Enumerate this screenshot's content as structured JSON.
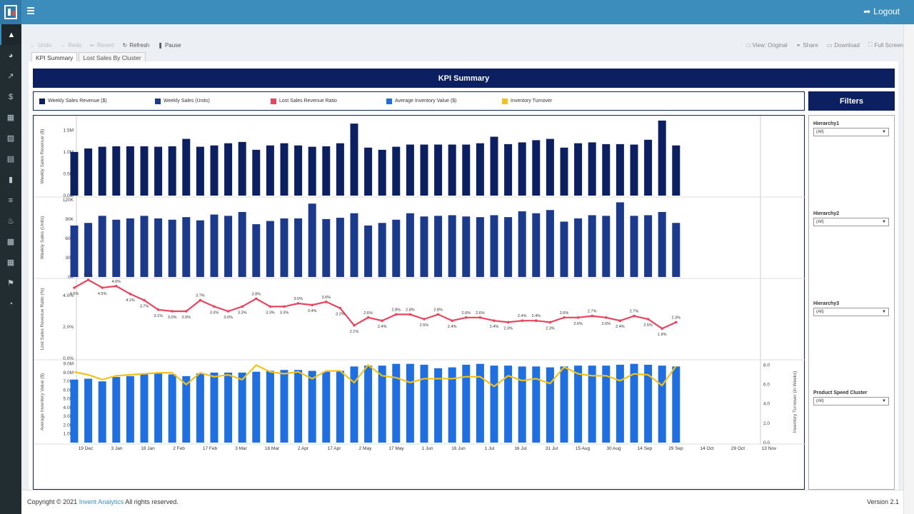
{
  "header": {
    "logout_label": "Logout"
  },
  "sidebar": {
    "items": [
      "chart-area-icon",
      "dashboard-icon",
      "line-chart-icon",
      "dollar-icon",
      "table-icon",
      "truck-icon",
      "database-icon",
      "book-icon",
      "sliders-icon",
      "bell-icon",
      "archive-icon",
      "calendar-icon",
      "flag-icon",
      "pie-chart-icon"
    ]
  },
  "toolbar": {
    "undo": "Undo",
    "redo": "Redo",
    "revert": "Revert",
    "refresh": "Refresh",
    "pause": "Pause",
    "view": "View: Original",
    "share": "Share",
    "download": "Download",
    "fullscreen": "Full Screen"
  },
  "tabs": [
    "KPI Summary",
    "Lost Sales By Cluster"
  ],
  "dashboard": {
    "title": "KPI Summary",
    "legend": [
      {
        "label": "Weekly Sales Revenue ($)",
        "color": "#0c2061"
      },
      {
        "label": "Weekly Sales (Units)",
        "color": "#1c3a8c"
      },
      {
        "label": "Lost Sales Revenue Ratio",
        "color": "#e8455f"
      },
      {
        "label": "Average Inventory Value ($)",
        "color": "#1f6fe0"
      },
      {
        "label": "Inventory Turnover",
        "color": "#f3c218"
      }
    ]
  },
  "filters": {
    "title": "Filters",
    "items": [
      {
        "label": "Hierarchy1",
        "value": "(All)"
      },
      {
        "label": "Hierarchy2",
        "value": "(All)"
      },
      {
        "label": "Hierarchy3",
        "value": "(All)"
      },
      {
        "label": "Product Speed Cluster",
        "value": "(All)"
      }
    ]
  },
  "footer": {
    "copyright_prefix": "Copyright © 2021",
    "brand": "Invent Analytics",
    "rights": "All rights reserved.",
    "version": "Version 2.1"
  },
  "chart_data": [
    {
      "type": "bar",
      "ylabel": "Weekly Sales Revenue ($)",
      "yticks": [
        "0.0M",
        "0.5M",
        "1.0M",
        "1.5M"
      ],
      "ylim": [
        0,
        1.8
      ],
      "color": "#0c2061",
      "values": [
        1.0,
        1.08,
        1.12,
        1.13,
        1.13,
        1.13,
        1.12,
        1.13,
        1.3,
        1.12,
        1.15,
        1.2,
        1.23,
        1.05,
        1.15,
        1.2,
        1.15,
        1.12,
        1.13,
        1.2,
        1.65,
        1.1,
        1.05,
        1.12,
        1.17,
        1.17,
        1.17,
        1.17,
        1.17,
        1.2,
        1.35,
        1.18,
        1.22,
        1.27,
        1.3,
        1.1,
        1.2,
        1.22,
        1.18,
        1.18,
        1.17,
        1.28,
        1.72,
        1.15
      ]
    },
    {
      "type": "bar",
      "ylabel": "Weekly Sales (Units)",
      "yticks": [
        "0K",
        "30K",
        "60K",
        "90K",
        "120K"
      ],
      "ylim": [
        0,
        122
      ],
      "color": "#1c3a8c",
      "values": [
        80,
        84,
        95,
        89,
        91,
        95,
        91,
        89,
        93,
        88,
        97,
        95,
        101,
        82,
        87,
        91,
        91,
        114,
        90,
        92,
        99,
        80,
        84,
        89,
        99,
        94,
        95,
        96,
        94,
        93,
        96,
        93,
        102,
        99,
        104,
        86,
        91,
        96,
        95,
        116,
        95,
        96,
        101,
        84
      ]
    },
    {
      "type": "line",
      "ylabel": "Lost Sales Revenue Ratio (%)",
      "yticks": [
        "0.0%",
        "2.0%",
        "4.0%"
      ],
      "ylim": [
        0,
        5
      ],
      "color": "#e8455f",
      "values": [
        4.5,
        5.0,
        4.5,
        4.6,
        4.1,
        3.7,
        3.1,
        3.0,
        3.0,
        3.7,
        3.3,
        3.0,
        3.3,
        3.8,
        3.3,
        3.3,
        3.5,
        3.4,
        3.6,
        3.2,
        2.1,
        2.6,
        2.4,
        2.8,
        2.8,
        2.5,
        2.8,
        2.4,
        2.6,
        2.6,
        2.4,
        2.3,
        2.4,
        2.4,
        2.3,
        2.6,
        2.6,
        2.7,
        2.6,
        2.4,
        2.7,
        2.5,
        1.9,
        2.3
      ],
      "labels": [
        "4.5%",
        "5.0%",
        "4.5%",
        "4.6%",
        "4.1%",
        "3.7%",
        "3.1%",
        "3.0%",
        "3.0%",
        "3.7%",
        "3.3%",
        "3.0%",
        "3.3%",
        "3.8%",
        "3.3%",
        "3.3%",
        "3.5%",
        "3.4%",
        "3.6%",
        "3.2%",
        "2.1%",
        "2.6%",
        "2.4%",
        "2.8%",
        "2.8%",
        "2.5%",
        "2.8%",
        "2.4%",
        "2.6%",
        "2.6%",
        "2.4%",
        "2.3%",
        "2.4%",
        "2.4%",
        "2.3%",
        "2.6%",
        "2.6%",
        "2.7%",
        "2.6%",
        "2.4%",
        "2.7%",
        "2.5%",
        "1.9%",
        "2.3%"
      ]
    },
    {
      "type": "bar+line",
      "ylabel": "Average Inventory Value ($)",
      "y2label": "Inventory Turnover (in Weeks)",
      "yticks": [
        "1.0M",
        "2.0M",
        "3.0M",
        "4.0M",
        "5.0M",
        "6.0M",
        "7.0M",
        "8.0M",
        "9.0M"
      ],
      "ylim": [
        0,
        9.3
      ],
      "y2ticks": [
        "0.0",
        "2.0",
        "4.0",
        "6.0",
        "8.0"
      ],
      "y2lim": [
        0,
        8.4
      ],
      "bar_color": "#1f6fe0",
      "line_color": "#f3c218",
      "bars": [
        7.2,
        7.3,
        7.0,
        7.5,
        7.6,
        7.8,
        7.9,
        7.8,
        7.6,
        7.9,
        8.0,
        8.0,
        8.0,
        8.1,
        8.2,
        8.3,
        8.3,
        8.2,
        8.1,
        8.2,
        8.7,
        8.8,
        8.8,
        9.0,
        9.0,
        8.9,
        8.5,
        8.6,
        8.9,
        9.0,
        8.8,
        8.8,
        8.7,
        8.7,
        8.6,
        8.7,
        8.8,
        8.8,
        8.8,
        8.9,
        9.0,
        8.9,
        8.8,
        8.7
      ],
      "line": [
        7.3,
        7.0,
        6.5,
        6.9,
        7.0,
        7.1,
        7.2,
        7.2,
        6.0,
        7.2,
        6.8,
        7.0,
        6.5,
        8.0,
        7.3,
        7.1,
        7.3,
        6.6,
        7.4,
        7.4,
        6.2,
        8.0,
        6.9,
        6.7,
        6.2,
        6.6,
        6.6,
        6.6,
        6.8,
        6.8,
        5.8,
        6.9,
        6.4,
        6.6,
        6.1,
        7.8,
        7.1,
        6.9,
        6.9,
        6.4,
        7.1,
        7.0,
        5.9,
        7.9
      ]
    },
    {
      "type": "axis",
      "x_ticks": [
        "19 Dec",
        "3 Jan",
        "18 Jan",
        "2 Feb",
        "17 Feb",
        "3 Mar",
        "18 Mar",
        "2 Apr",
        "17 Apr",
        "2 May",
        "17 May",
        "1 Jun",
        "16 Jun",
        "1 Jul",
        "16 Jul",
        "31 Jul",
        "15 Aug",
        "30 Aug",
        "14 Sep",
        "29 Sep",
        "14 Oct",
        "29 Oct",
        "13 Nov"
      ]
    }
  ]
}
